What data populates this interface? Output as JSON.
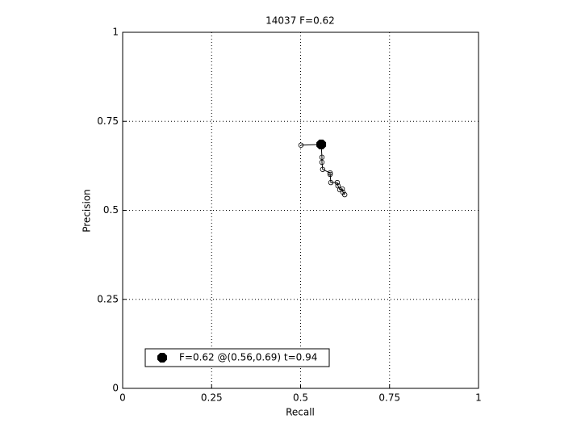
{
  "chart_data": {
    "type": "line",
    "title": "14037 F=0.62",
    "x_label": "Recall",
    "y_label": "Precision",
    "xlim": [
      0,
      1
    ],
    "ylim": [
      0,
      1
    ],
    "xticks": [
      0,
      0.25,
      0.5,
      0.75,
      1
    ],
    "yticks": [
      0,
      0.25,
      0.5,
      0.75,
      1
    ],
    "grid": true,
    "legend": "lower left",
    "series": [
      {
        "color": "#000000",
        "marker": "open-circle",
        "x": [
          0.501,
          0.558,
          0.56,
          0.56,
          0.562,
          0.583,
          0.583,
          0.585,
          0.603,
          0.605,
          0.61,
          0.617,
          0.619,
          0.624
        ],
        "values": [
          0.683,
          0.685,
          0.649,
          0.635,
          0.615,
          0.605,
          0.601,
          0.578,
          0.578,
          0.569,
          0.558,
          0.56,
          0.551,
          0.544
        ]
      },
      {
        "name": "F=0.62 @(0.56,0.69) t=0.94",
        "color": "#000000",
        "marker": "filled-octagon",
        "x": [
          0.558
        ],
        "values": [
          0.685
        ]
      }
    ]
  }
}
